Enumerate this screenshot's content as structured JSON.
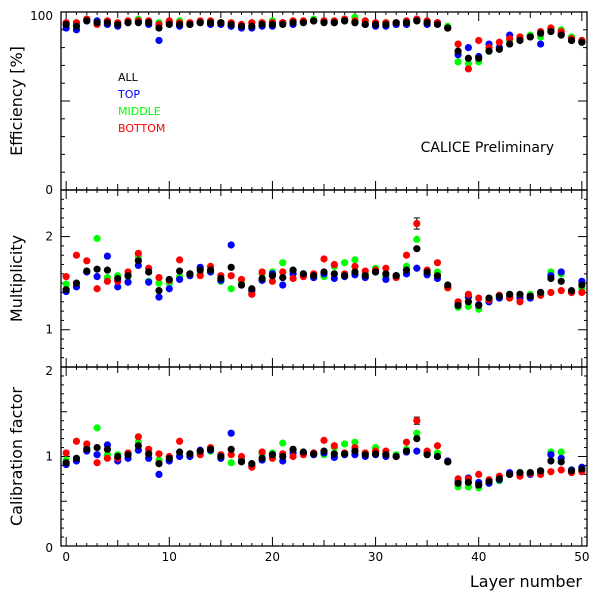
{
  "chart_data": {
    "type": "scatter",
    "annotation": "CALICE Preliminary",
    "xlabel": "Layer number",
    "xlim": [
      -0.5,
      50.5
    ],
    "x_ticks": [
      "0",
      "10",
      "20",
      "30",
      "40",
      "50"
    ],
    "colors": {
      "ALL": "#000000",
      "TOP": "#0000ff",
      "MIDDLE": "#00ff00",
      "BOTTOM": "#ff0000"
    },
    "legend": [
      "ALL",
      "TOP",
      "MIDDLE",
      "BOTTOM"
    ],
    "x": [
      0,
      1,
      2,
      3,
      4,
      5,
      6,
      7,
      8,
      9,
      10,
      11,
      12,
      13,
      14,
      15,
      16,
      17,
      18,
      19,
      20,
      21,
      22,
      23,
      24,
      25,
      26,
      27,
      28,
      29,
      30,
      31,
      32,
      33,
      34,
      35,
      36,
      37,
      38,
      39,
      40,
      41,
      42,
      43,
      44,
      45,
      46,
      47,
      48,
      49,
      50
    ],
    "panels": [
      {
        "ylabel": "Efficiency [%]",
        "ylim": [
          0,
          100
        ],
        "y_ticks": [
          "0",
          "100"
        ],
        "series": [
          {
            "name": "ALL",
            "values": [
              93,
              92,
              95,
              94,
              94,
              93,
              94,
              94,
              94,
              91,
              93,
              93,
              93,
              94,
              94,
              94,
              93,
              92,
              92,
              93,
              93,
              93,
              94,
              94,
              95,
              94,
              94,
              95,
              94,
              93,
              93,
              93,
              94,
              94,
              95,
              94,
              93,
              91,
              78,
              74,
              74,
              78,
              79,
              82,
              84,
              86,
              88,
              89,
              87,
              84,
              83
            ]
          },
          {
            "name": "TOP",
            "values": [
              91,
              90,
              95,
              95,
              93,
              92,
              94,
              95,
              93,
              84,
              94,
              92,
              93,
              94,
              93,
              93,
              92,
              91,
              91,
              92,
              92,
              94,
              93,
              94,
              95,
              95,
              94,
              95,
              94,
              93,
              92,
              92,
              93,
              93,
              96,
              93,
              94,
              91,
              76,
              80,
              75,
              82,
              80,
              87,
              85,
              86,
              82,
              90,
              88,
              84,
              83
            ]
          },
          {
            "name": "MIDDLE",
            "values": [
              93,
              93,
              96,
              95,
              95,
              93,
              95,
              96,
              95,
              94,
              94,
              95,
              94,
              94,
              95,
              94,
              92,
              92,
              94,
              94,
              95,
              94,
              95,
              95,
              96,
              95,
              95,
              96,
              97,
              95,
              93,
              94,
              93,
              94,
              95,
              95,
              94,
              92,
              72,
              71,
              72,
              78,
              80,
              84,
              86,
              87,
              86,
              91,
              90,
              86,
              84
            ]
          },
          {
            "name": "BOTTOM",
            "values": [
              94,
              94,
              96,
              93,
              95,
              94,
              95,
              95,
              95,
              93,
              95,
              94,
              94,
              95,
              95,
              94,
              94,
              93,
              94,
              94,
              94,
              94,
              95,
              95,
              95,
              95,
              95,
              96,
              95,
              95,
              94,
              94,
              94,
              95,
              96,
              95,
              94,
              91,
              82,
              68,
              84,
              80,
              83,
              85,
              86,
              86,
              89,
              91,
              89,
              85,
              84
            ]
          }
        ]
      },
      {
        "ylabel": "Multiplicity",
        "ylim": [
          0.6,
          2.5
        ],
        "y_ticks": [
          "1",
          "2"
        ],
        "series": [
          {
            "name": "ALL",
            "values": [
              1.43,
              1.5,
              1.63,
              1.65,
              1.64,
              1.55,
              1.58,
              1.74,
              1.62,
              1.42,
              1.54,
              1.63,
              1.6,
              1.64,
              1.64,
              1.55,
              1.67,
              1.48,
              1.44,
              1.55,
              1.58,
              1.56,
              1.64,
              1.6,
              1.58,
              1.62,
              1.6,
              1.58,
              1.62,
              1.58,
              1.62,
              1.6,
              1.58,
              1.64,
              1.87,
              1.62,
              1.58,
              1.48,
              1.26,
              1.3,
              1.26,
              1.34,
              1.36,
              1.38,
              1.38,
              1.36,
              1.4,
              1.55,
              1.52,
              1.42,
              1.48
            ]
          },
          {
            "name": "TOP",
            "values": [
              1.41,
              1.46,
              1.62,
              1.57,
              1.79,
              1.46,
              1.51,
              1.69,
              1.51,
              1.35,
              1.44,
              1.54,
              1.58,
              1.67,
              1.62,
              1.53,
              1.91,
              1.48,
              1.42,
              1.53,
              1.6,
              1.48,
              1.6,
              1.59,
              1.56,
              1.6,
              1.55,
              1.57,
              1.59,
              1.56,
              1.62,
              1.54,
              1.58,
              1.6,
              1.66,
              1.59,
              1.55,
              1.46,
              1.28,
              1.35,
              1.27,
              1.3,
              1.34,
              1.35,
              1.34,
              1.34,
              1.4,
              1.58,
              1.62,
              1.4,
              1.52
            ]
          },
          {
            "name": "MIDDLE",
            "values": [
              1.49,
              1.47,
              1.63,
              1.98,
              1.56,
              1.58,
              1.57,
              1.78,
              1.52,
              1.5,
              1.5,
              1.57,
              1.58,
              1.6,
              1.62,
              1.52,
              1.44,
              1.5,
              1.4,
              1.6,
              1.62,
              1.72,
              1.64,
              1.6,
              1.56,
              1.57,
              1.68,
              1.72,
              1.75,
              1.6,
              1.66,
              1.57,
              1.58,
              1.68,
              1.97,
              1.6,
              1.62,
              1.45,
              1.24,
              1.25,
              1.22,
              1.3,
              1.34,
              1.38,
              1.36,
              1.38,
              1.38,
              1.62,
              1.6,
              1.41,
              1.44
            ]
          },
          {
            "name": "BOTTOM",
            "values": [
              1.57,
              1.8,
              1.74,
              1.44,
              1.52,
              1.52,
              1.62,
              1.82,
              1.66,
              1.56,
              1.53,
              1.75,
              1.6,
              1.58,
              1.68,
              1.58,
              1.58,
              1.54,
              1.38,
              1.62,
              1.52,
              1.62,
              1.55,
              1.57,
              1.6,
              1.76,
              1.7,
              1.6,
              1.68,
              1.63,
              1.64,
              1.66,
              1.56,
              1.8,
              2.14,
              1.64,
              1.72,
              1.45,
              1.3,
              1.38,
              1.34,
              1.32,
              1.37,
              1.34,
              1.3,
              1.36,
              1.37,
              1.4,
              1.42,
              1.4,
              1.4
            ]
          }
        ]
      },
      {
        "ylabel": "Calibration factor",
        "ylim": [
          0,
          2
        ],
        "y_ticks": [
          "0",
          "1",
          "2"
        ],
        "series": [
          {
            "name": "ALL",
            "values": [
              0.93,
              0.98,
              1.08,
              1.1,
              1.08,
              1.0,
              1.02,
              1.12,
              1.03,
              0.92,
              0.98,
              1.05,
              1.03,
              1.06,
              1.08,
              1.0,
              1.08,
              0.94,
              0.92,
              0.98,
              1.02,
              1.0,
              1.08,
              1.05,
              1.03,
              1.06,
              1.03,
              1.03,
              1.06,
              1.02,
              1.03,
              1.02,
              1.0,
              1.06,
              1.2,
              1.02,
              1.0,
              0.94,
              0.7,
              0.71,
              0.68,
              0.72,
              0.75,
              0.8,
              0.82,
              0.82,
              0.84,
              0.95,
              0.94,
              0.84,
              0.86
            ]
          },
          {
            "name": "TOP",
            "values": [
              0.91,
              0.95,
              1.06,
              1.02,
              1.13,
              0.95,
              0.98,
              1.07,
              0.98,
              0.8,
              0.95,
              1.0,
              1.0,
              1.07,
              1.07,
              0.98,
              1.26,
              0.95,
              0.9,
              0.96,
              1.02,
              0.95,
              1.04,
              1.04,
              1.02,
              1.04,
              0.99,
              1.02,
              1.02,
              1.0,
              1.02,
              1.0,
              1.0,
              1.05,
              1.06,
              1.03,
              1.0,
              0.95,
              0.72,
              0.76,
              0.71,
              0.7,
              0.74,
              0.82,
              0.8,
              0.8,
              0.84,
              1.02,
              0.98,
              0.85,
              0.88
            ]
          },
          {
            "name": "MIDDLE",
            "values": [
              0.96,
              0.96,
              1.1,
              1.32,
              1.02,
              1.02,
              1.02,
              1.16,
              0.98,
              0.96,
              0.96,
              1.01,
              1.0,
              1.04,
              1.06,
              0.98,
              0.93,
              0.97,
              0.9,
              1.03,
              1.04,
              1.15,
              1.08,
              1.04,
              1.02,
              1.02,
              1.1,
              1.14,
              1.16,
              1.04,
              1.1,
              1.02,
              1.02,
              1.08,
              1.26,
              1.04,
              1.04,
              0.94,
              0.66,
              0.66,
              0.65,
              0.71,
              0.73,
              0.8,
              0.82,
              0.82,
              0.82,
              1.05,
              1.05,
              0.85,
              0.84
            ]
          },
          {
            "name": "BOTTOM",
            "values": [
              1.04,
              1.17,
              1.14,
              0.93,
              0.98,
              0.98,
              1.04,
              1.22,
              1.08,
              1.03,
              1.0,
              1.17,
              1.03,
              1.02,
              1.1,
              1.02,
              1.02,
              1.0,
              0.88,
              1.05,
              0.98,
              1.03,
              1.0,
              1.02,
              1.04,
              1.18,
              1.12,
              1.04,
              1.1,
              1.04,
              1.06,
              1.06,
              1.0,
              1.16,
              1.4,
              1.06,
              1.12,
              0.94,
              0.75,
              0.75,
              0.8,
              0.74,
              0.78,
              0.8,
              0.78,
              0.81,
              0.8,
              0.83,
              0.85,
              0.82,
              0.83
            ]
          }
        ]
      }
    ],
    "error_bars": [
      {
        "panel": 1,
        "series": "BOTTOM",
        "x": 34,
        "y": 2.14,
        "err": 0.06
      },
      {
        "panel": 2,
        "series": "BOTTOM",
        "x": 34,
        "y": 1.4,
        "err": 0.04
      }
    ]
  }
}
